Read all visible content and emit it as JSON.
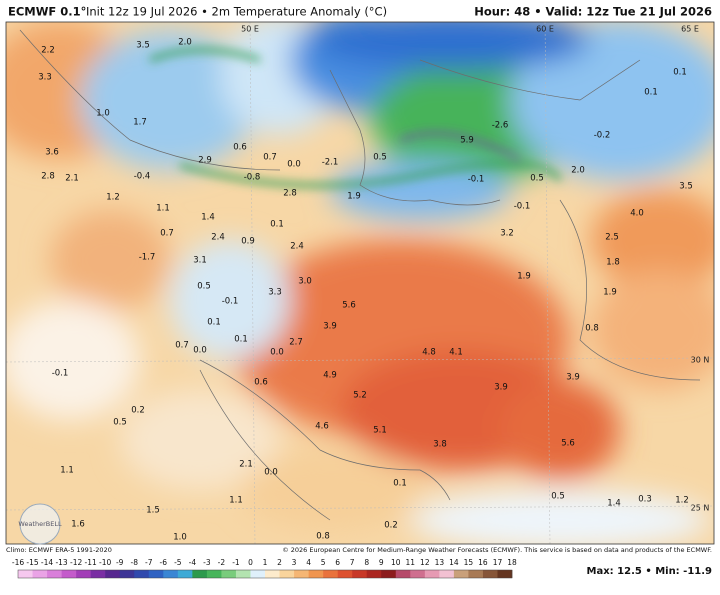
{
  "header": {
    "title_model": "ECMWF 0.1°",
    "title_rest": "Init 12z 19 Jul 2026 • 2m Temperature Anomaly (°C)",
    "valid": "Hour: 48 • Valid: 12z Tue 21 Jul 2026"
  },
  "map": {
    "grid_labels": [
      "50 E",
      "60 E",
      "65 E",
      "30 N",
      "25 N"
    ],
    "value_labels": [
      "2.2",
      "3.3",
      "1.0",
      "1.7",
      "3.6",
      "2.8",
      "2.1",
      "1.2",
      "-0.4",
      "1.1",
      "1.4",
      "2.4",
      "0.7",
      "-1.7",
      "3.1",
      "0.9",
      "2.4",
      "0.1",
      "0.6",
      "0.7",
      "0.0",
      "-2.1",
      "0.5",
      "2.8",
      "1.9",
      "-0.8",
      "2.9",
      "2.0",
      "3.5",
      "-2.6",
      "5.9",
      "-0.1",
      "0.5",
      "2.0",
      "-0.1",
      "-0.2",
      "0.1",
      "0.1",
      "3.5",
      "4.0",
      "2.5",
      "1.8",
      "1.9",
      "0.8",
      "3.2",
      "1.9",
      "3.0",
      "3.3",
      "5.6",
      "3.9",
      "4.8",
      "4.1",
      "3.9",
      "3.9",
      "5.6",
      "0.5",
      "0.1",
      "0.1",
      "0.0",
      "2.7",
      "-0.1",
      "0.7",
      "0.0",
      "-0.1",
      "0.5",
      "0.2",
      "0.6",
      "1.1",
      "1.1",
      "2.1",
      "0.0",
      "1.5",
      "1.0",
      "1.6",
      "0.1",
      "0.8",
      "0.2",
      "0.5",
      "1.4",
      "0.3",
      "1.2",
      "4.9",
      "5.2",
      "5.1",
      "4.6",
      "3.8"
    ],
    "logo": "WeatherBELL"
  },
  "footer": {
    "climo": "Climo: ECMWF ERA-5 1991-2020",
    "copyright": "© 2026 European Centre for Medium-Range Weather Forecasts (ECMWF). This service is based on data and products of the ECMWF.",
    "maxmin": "Max: 12.5 • Min: -11.9"
  },
  "colorbar": {
    "ticks": [
      -16,
      -15,
      -14,
      -13,
      -12,
      -11,
      -10,
      -9,
      -8,
      -7,
      -6,
      -5,
      -4,
      -3,
      -2,
      -1,
      0,
      1,
      2,
      3,
      4,
      5,
      6,
      7,
      8,
      9,
      10,
      11,
      12,
      13,
      14,
      15,
      16,
      17,
      18
    ],
    "colors": [
      "#f6c8ef",
      "#eaa3e6",
      "#d97fda",
      "#c45bcb",
      "#a23eb7",
      "#7a2ea3",
      "#57278f",
      "#3d3596",
      "#3049ad",
      "#2f62c2",
      "#3a86d4",
      "#3eaad6",
      "#2c9a4c",
      "#47b55b",
      "#79cc7c",
      "#b3e3b0",
      "#dff0fb",
      "#fdebcc",
      "#f9d49c",
      "#f5b674",
      "#f0954f",
      "#e9723c",
      "#dd512f",
      "#c83827",
      "#ab2620",
      "#8c1c1d",
      "#b64a6a",
      "#cf6f8f",
      "#e69ab3",
      "#f2c1d2",
      "#c9a07a",
      "#a87a55",
      "#865538",
      "#643520"
    ]
  }
}
